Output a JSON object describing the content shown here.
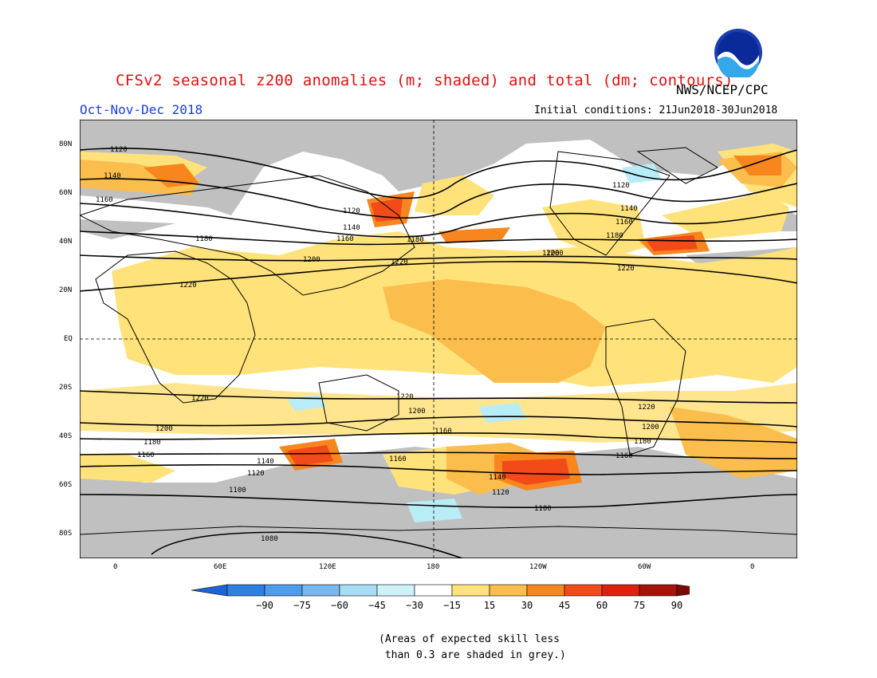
{
  "header": {
    "title": "CFSv2 seasonal z200 anomalies (m; shaded) and total (dm; contours)",
    "agency": "NWS/NCEP/CPC",
    "period": "Oct-Nov-Dec 2018",
    "initial_conditions": "Initial conditions: 21Jun2018-30Jun2018",
    "logo_text": "NOAA"
  },
  "map": {
    "lat_labels": [
      "80N",
      "60N",
      "40N",
      "20N",
      "EQ",
      "20S",
      "40S",
      "60S",
      "80S"
    ],
    "lon_labels": [
      "0",
      "60E",
      "120E",
      "180",
      "120W",
      "60W",
      "0"
    ],
    "contour_labels": [
      "1120",
      "1140",
      "1160",
      "1180",
      "1200",
      "1220",
      "1120",
      "1140",
      "1160",
      "1180",
      "1200",
      "1220",
      "1120",
      "1140",
      "1160",
      "1180",
      "1200",
      "1220",
      "1220",
      "1200",
      "1180",
      "1160",
      "1140",
      "1120",
      "1100",
      "1080",
      "1220",
      "1200",
      "1160",
      "1160",
      "1140",
      "1120",
      "1100",
      "1220",
      "1200",
      "1180",
      "1160"
    ],
    "colors": {
      "grey": "#c0c0c0",
      "pos15": "#ffe27a",
      "pos30": "#fbbd4b",
      "pos45": "#f7861f",
      "pos60": "#f24a18",
      "neg15": "#b8ecf6"
    }
  },
  "legend": {
    "labels": [
      "-90",
      "-75",
      "-60",
      "-45",
      "-30",
      "-15",
      "15",
      "30",
      "45",
      "60",
      "75",
      "90"
    ],
    "colors": [
      "#1e64d8",
      "#2e80e2",
      "#4e9cea",
      "#78b8f0",
      "#a6dcf4",
      "#cdf2f8",
      "#ffffff",
      "#ffe27a",
      "#fbbd4b",
      "#f7861f",
      "#f24a18",
      "#de200e",
      "#a8120a",
      "#7a0a05"
    ]
  },
  "note": "(Areas of expected skill less\n than 0.3 are shaded in grey.)"
}
